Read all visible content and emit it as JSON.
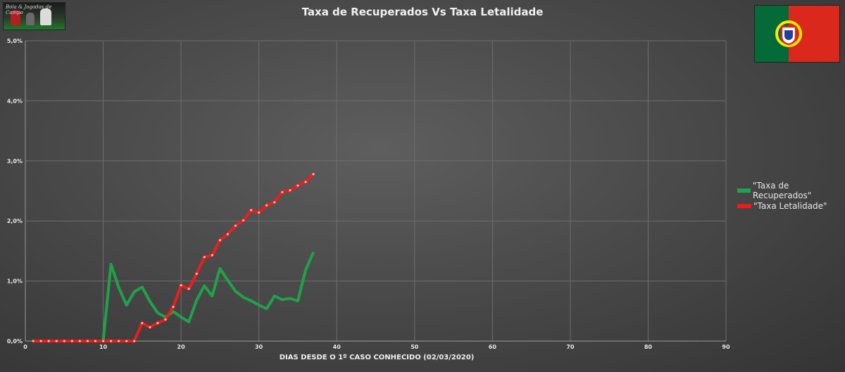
{
  "title": "Taxa de Recuperados Vs Taxa Letalidade",
  "logo": {
    "icon": "football-players-logo",
    "text": "Bola & Jogadas de Campo"
  },
  "flag": {
    "icon": "portugal-flag",
    "colors": {
      "green": "#046a38",
      "red": "#da291c",
      "yellow": "#ffe900"
    }
  },
  "chart_data": {
    "type": "line",
    "title": "Taxa de Recuperados Vs Taxa Letalidade",
    "xlabel": "DIAS DESDE O 1º CASO CONHECIDO (02/03/2020)",
    "ylabel": "",
    "xlim": [
      0,
      90
    ],
    "ylim": [
      0,
      0.05
    ],
    "x_ticks": [
      0,
      10,
      20,
      30,
      40,
      50,
      60,
      70,
      80,
      90
    ],
    "y_ticks": [
      0,
      0.01,
      0.02,
      0.03,
      0.04,
      0.05
    ],
    "y_tick_labels": [
      "0,0%",
      "1,0%",
      "2,0%",
      "3,0%",
      "4,0%",
      "5,0%"
    ],
    "grid": true,
    "legend_position": "right",
    "series": [
      {
        "name": "\"Taxa de Recuperados\"",
        "color": "#1fa24a",
        "markers": false,
        "x": [
          1,
          2,
          3,
          4,
          5,
          6,
          7,
          8,
          9,
          10,
          11,
          12,
          13,
          14,
          15,
          16,
          17,
          18,
          19,
          20,
          21,
          22,
          23,
          24,
          25,
          26,
          27,
          28,
          29,
          30,
          31,
          32,
          33,
          34,
          35,
          36,
          37
        ],
        "y": [
          0,
          0,
          0,
          0,
          0,
          0,
          0,
          0,
          0,
          0,
          0.0128,
          0.0089,
          0.006,
          0.0082,
          0.009,
          0.0066,
          0.0047,
          0.004,
          0.0049,
          0.004,
          0.0032,
          0.0068,
          0.0092,
          0.0075,
          0.0121,
          0.0101,
          0.0083,
          0.0073,
          0.0067,
          0.006,
          0.0054,
          0.0075,
          0.0069,
          0.0071,
          0.0067,
          0.0118,
          0.0148
        ]
      },
      {
        "name": "\"Taxa Letalidade\"",
        "color": "#ee1c1c",
        "markers": true,
        "x": [
          1,
          2,
          3,
          4,
          5,
          6,
          7,
          8,
          9,
          10,
          11,
          12,
          13,
          14,
          15,
          16,
          17,
          18,
          19,
          20,
          21,
          22,
          23,
          24,
          25,
          26,
          27,
          28,
          29,
          30,
          31,
          32,
          33,
          34,
          35,
          36,
          37
        ],
        "y": [
          0,
          0,
          0,
          0,
          0,
          0,
          0,
          0,
          0,
          0,
          0,
          0,
          0,
          0,
          0.003,
          0.0023,
          0.003,
          0.0036,
          0.0057,
          0.0093,
          0.0087,
          0.0112,
          0.014,
          0.0143,
          0.0168,
          0.0178,
          0.0192,
          0.0201,
          0.0218,
          0.0214,
          0.0226,
          0.0231,
          0.0248,
          0.0251,
          0.0259,
          0.0265,
          0.0278
        ]
      }
    ]
  }
}
